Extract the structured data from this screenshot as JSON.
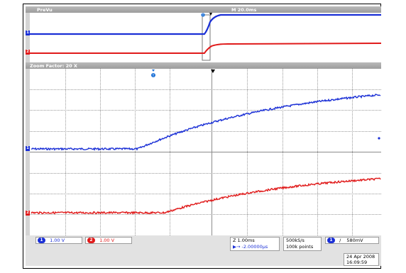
{
  "overview": {
    "title": "PreVu",
    "timebase": "M 20.0ms"
  },
  "zoom": {
    "label": "Zoom Factor: 20 X"
  },
  "channels": [
    {
      "id": "1",
      "name": "ch1",
      "color": "#1a2fd6",
      "scale": "1.00 V"
    },
    {
      "id": "2",
      "name": "ch2",
      "color": "#e01a1a",
      "scale": "1.00 V"
    }
  ],
  "trigger_marker": "T",
  "timing": {
    "zoom_scale": "Z 1.00ms",
    "position": "▶→ -2.00000µs"
  },
  "acquisition": {
    "rate": "500kS/s",
    "points": "100k points"
  },
  "trigger": {
    "channel": "1",
    "slope": "/",
    "level": "580mV"
  },
  "datetime": {
    "date": "24 Apr 2008",
    "time": "16:09:59"
  }
}
